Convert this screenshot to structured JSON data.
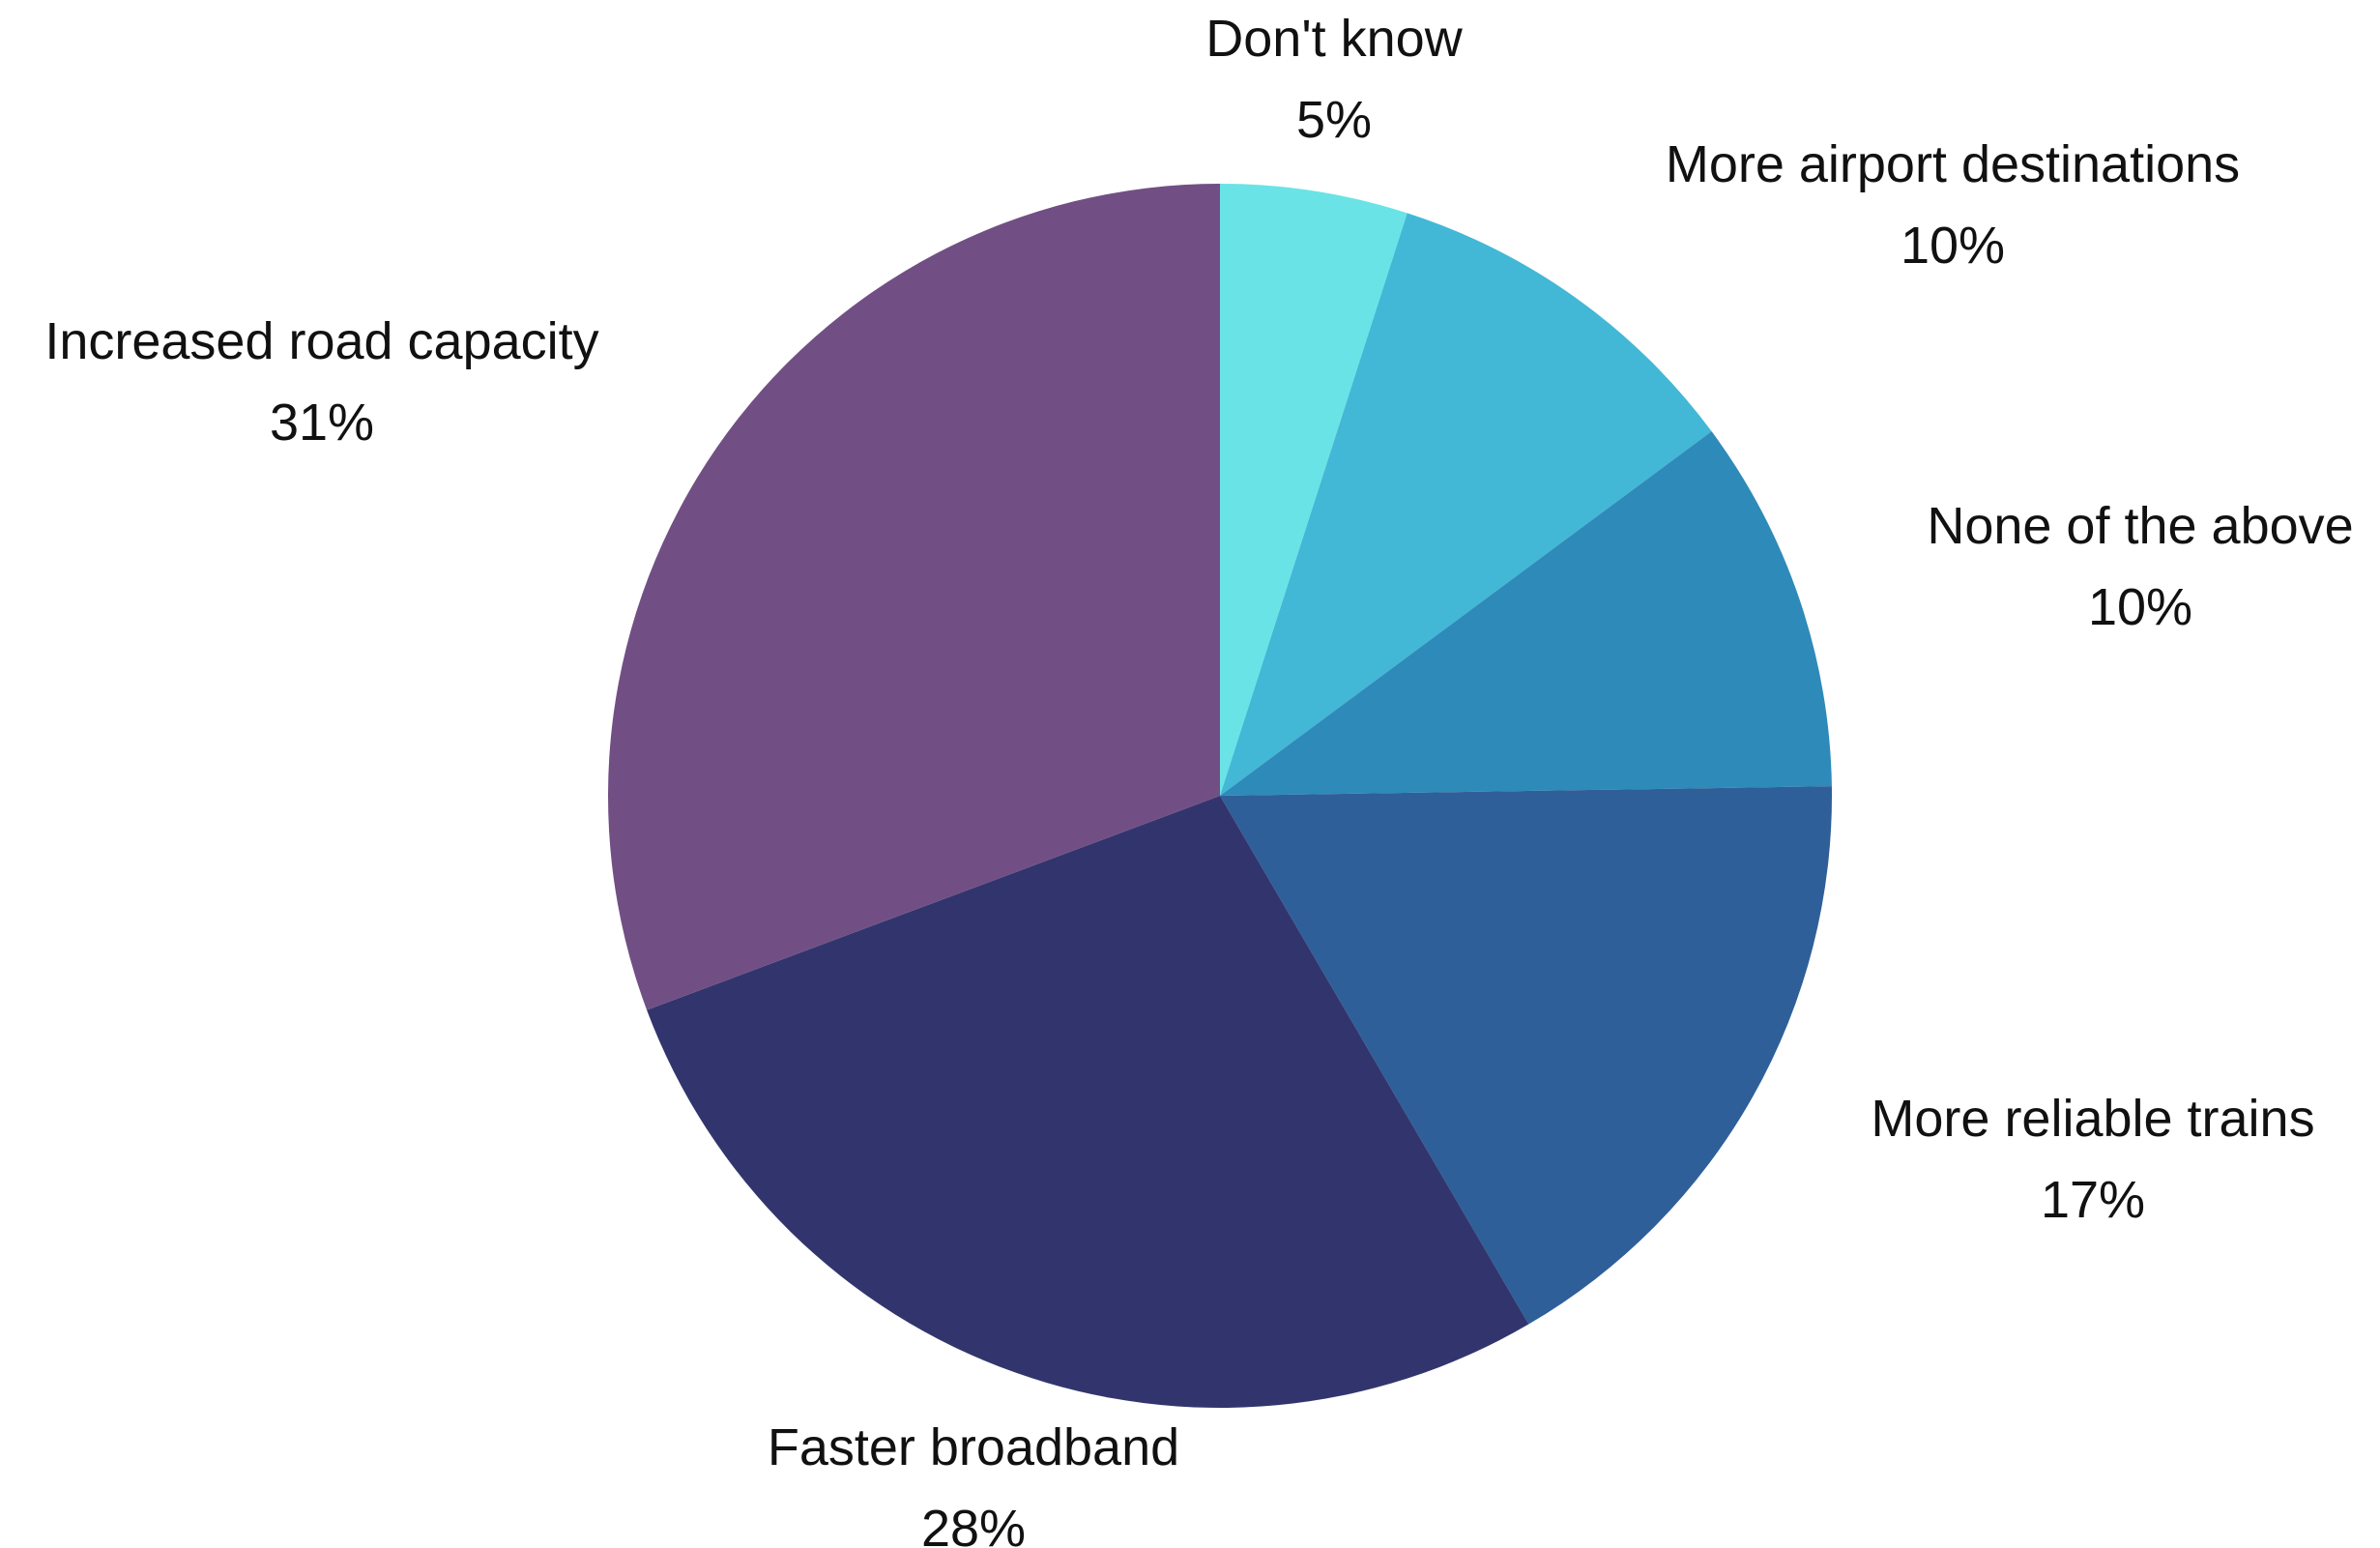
{
  "chart_data": {
    "type": "pie",
    "title": "",
    "start": "top",
    "direction": "clockwise",
    "slices": [
      {
        "label": "Don't know",
        "value": 5,
        "value_label": "5%",
        "color": "#6ae3e6"
      },
      {
        "label": "More airport destinations",
        "value": 10,
        "value_label": "10%",
        "color": "#43b7d6"
      },
      {
        "label": "None of the above",
        "value": 10,
        "value_label": "10%",
        "color": "#2e8ab9"
      },
      {
        "label": "More reliable trains",
        "value": 17,
        "value_label": "17%",
        "color": "#2f5f98"
      },
      {
        "label": "Faster broadband",
        "value": 28,
        "value_label": "28%",
        "color": "#32356d"
      },
      {
        "label": "Increased road capacity",
        "value": 31,
        "value_label": "31%",
        "color": "#714f84"
      }
    ]
  }
}
